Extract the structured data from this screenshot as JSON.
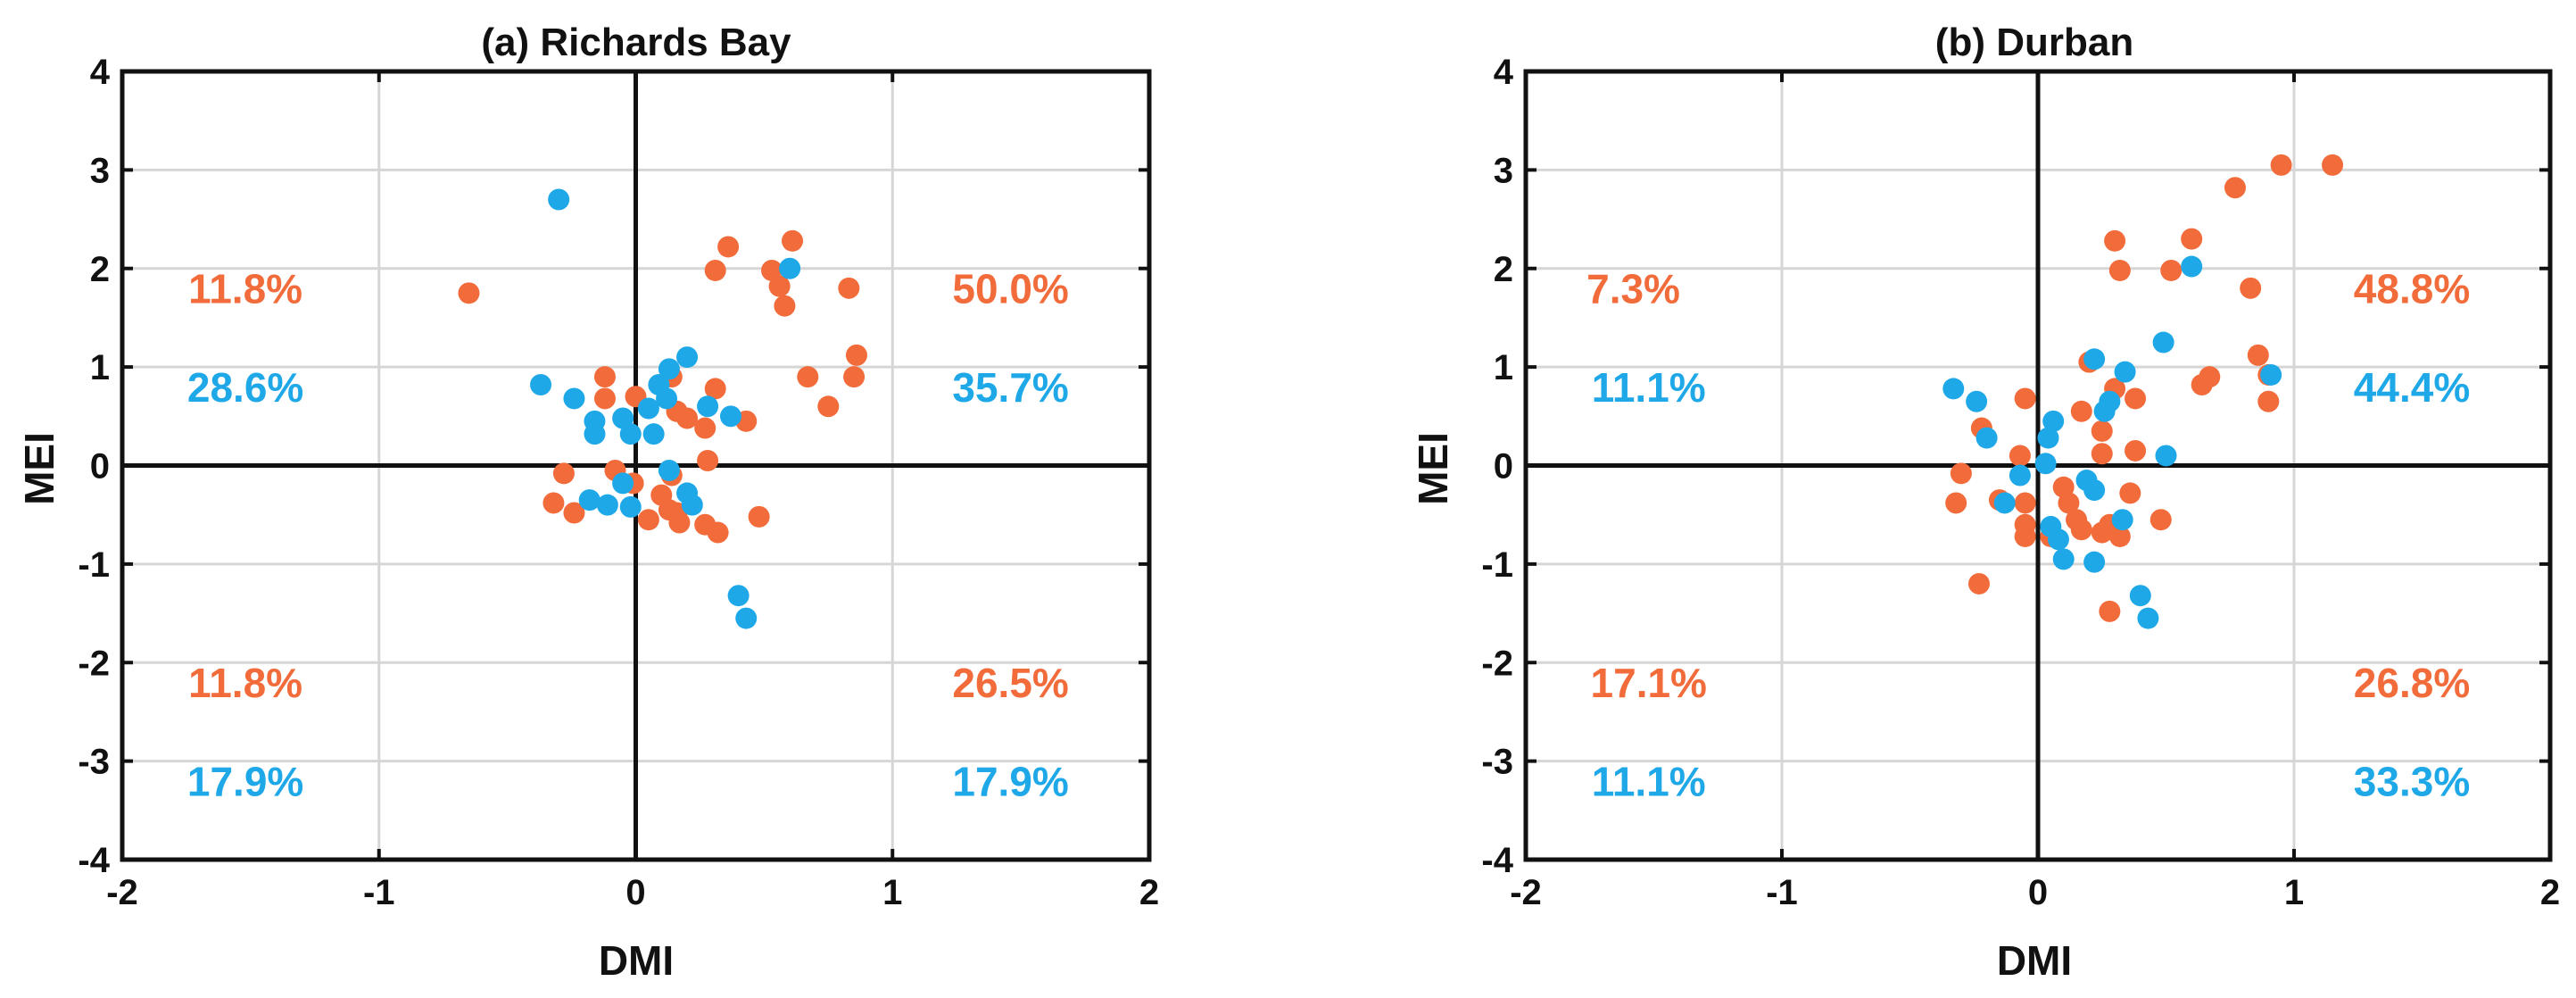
{
  "colors": {
    "orange": "#F26B3A",
    "blue": "#1FA8E8",
    "axis": "#111111",
    "grid": "#D6D6D6"
  },
  "chart_data": [
    {
      "type": "scatter",
      "title": "(a) Richards Bay",
      "xlabel": "DMI",
      "ylabel": "MEI",
      "xlim": [
        -2,
        2
      ],
      "ylim": [
        -4,
        4
      ],
      "xticks": [
        "-2",
        "-1",
        "0",
        "1",
        "2"
      ],
      "yticks": [
        "4",
        "3",
        "2",
        "1",
        "0",
        "-1",
        "-2",
        "-3",
        "-4"
      ],
      "grid": true,
      "series": [
        {
          "name": "orange",
          "color": "#F26B3A",
          "points": [
            [
              -0.65,
              1.75
            ],
            [
              0.36,
              2.22
            ],
            [
              0.61,
              2.28
            ],
            [
              0.31,
              1.98
            ],
            [
              0.53,
              1.98
            ],
            [
              0.56,
              1.82
            ],
            [
              0.58,
              1.62
            ],
            [
              0.83,
              1.8
            ],
            [
              0.86,
              1.12
            ],
            [
              0.85,
              0.9
            ],
            [
              0.67,
              0.9
            ],
            [
              0.75,
              0.6
            ],
            [
              0.31,
              0.78
            ],
            [
              0.43,
              0.45
            ],
            [
              0.27,
              0.38
            ],
            [
              0.2,
              0.48
            ],
            [
              -0.12,
              0.9
            ],
            [
              -0.12,
              0.68
            ],
            [
              0.0,
              0.7
            ],
            [
              0.14,
              0.9
            ],
            [
              0.16,
              0.55
            ],
            [
              -0.32,
              -0.38
            ],
            [
              -0.28,
              -0.08
            ],
            [
              -0.24,
              -0.48
            ],
            [
              -0.08,
              -0.05
            ],
            [
              -0.01,
              -0.18
            ],
            [
              0.05,
              -0.55
            ],
            [
              0.1,
              -0.3
            ],
            [
              0.13,
              -0.45
            ],
            [
              0.14,
              -0.1
            ],
            [
              0.16,
              -0.48
            ],
            [
              0.17,
              -0.58
            ],
            [
              0.27,
              -0.6
            ],
            [
              0.28,
              0.05
            ],
            [
              0.32,
              -0.68
            ],
            [
              0.48,
              -0.52
            ]
          ]
        },
        {
          "name": "blue",
          "color": "#1FA8E8",
          "points": [
            [
              -0.3,
              2.7
            ],
            [
              0.6,
              2.0
            ],
            [
              0.2,
              1.1
            ],
            [
              0.13,
              0.98
            ],
            [
              0.09,
              0.82
            ],
            [
              0.12,
              0.68
            ],
            [
              0.05,
              0.58
            ],
            [
              -0.37,
              0.82
            ],
            [
              -0.24,
              0.68
            ],
            [
              -0.16,
              0.45
            ],
            [
              -0.16,
              0.32
            ],
            [
              -0.05,
              0.48
            ],
            [
              -0.02,
              0.32
            ],
            [
              0.07,
              0.32
            ],
            [
              0.28,
              0.6
            ],
            [
              0.37,
              0.5
            ],
            [
              -0.18,
              -0.35
            ],
            [
              -0.11,
              -0.4
            ],
            [
              -0.05,
              -0.18
            ],
            [
              -0.02,
              -0.42
            ],
            [
              0.13,
              -0.05
            ],
            [
              0.2,
              -0.28
            ],
            [
              0.22,
              -0.4
            ],
            [
              0.4,
              -1.32
            ],
            [
              0.43,
              -1.55
            ]
          ]
        }
      ],
      "annotations": [
        {
          "text": "11.8%",
          "color": "orange",
          "x": -1.52,
          "y": 1.65
        },
        {
          "text": "28.6%",
          "color": "blue",
          "x": -1.52,
          "y": 0.65
        },
        {
          "text": "50.0%",
          "color": "orange",
          "x": 1.46,
          "y": 1.65
        },
        {
          "text": "35.7%",
          "color": "blue",
          "x": 1.46,
          "y": 0.65
        },
        {
          "text": "11.8%",
          "color": "orange",
          "x": -1.52,
          "y": -2.35
        },
        {
          "text": "17.9%",
          "color": "blue",
          "x": -1.52,
          "y": -3.35
        },
        {
          "text": "26.5%",
          "color": "orange",
          "x": 1.46,
          "y": -2.35
        },
        {
          "text": "17.9%",
          "color": "blue",
          "x": 1.46,
          "y": -3.35
        }
      ]
    },
    {
      "type": "scatter",
      "title": "(b) Durban",
      "xlabel": "DMI",
      "ylabel": "MEI",
      "xlim": [
        -2,
        2
      ],
      "ylim": [
        -4,
        4
      ],
      "xticks": [
        "-2",
        "-1",
        "0",
        "1",
        "2"
      ],
      "yticks": [
        "4",
        "3",
        "2",
        "1",
        "0",
        "-1",
        "-2",
        "-3",
        "-4"
      ],
      "grid": true,
      "series": [
        {
          "name": "orange",
          "color": "#F26B3A",
          "points": [
            [
              0.95,
              3.05
            ],
            [
              1.15,
              3.05
            ],
            [
              0.77,
              2.82
            ],
            [
              0.6,
              2.3
            ],
            [
              0.3,
              2.28
            ],
            [
              0.32,
              1.98
            ],
            [
              0.52,
              1.98
            ],
            [
              0.83,
              1.8
            ],
            [
              0.86,
              1.12
            ],
            [
              0.9,
              0.92
            ],
            [
              0.9,
              0.65
            ],
            [
              0.67,
              0.9
            ],
            [
              0.64,
              0.82
            ],
            [
              0.2,
              1.05
            ],
            [
              0.38,
              0.68
            ],
            [
              0.3,
              0.78
            ],
            [
              0.38,
              0.15
            ],
            [
              0.25,
              0.35
            ],
            [
              0.25,
              0.12
            ],
            [
              0.17,
              0.55
            ],
            [
              -0.05,
              0.68
            ],
            [
              -0.07,
              0.1
            ],
            [
              -0.22,
              0.38
            ],
            [
              -0.32,
              -0.38
            ],
            [
              -0.3,
              -0.08
            ],
            [
              -0.15,
              -0.35
            ],
            [
              -0.05,
              -0.38
            ],
            [
              -0.05,
              -0.6
            ],
            [
              -0.05,
              -0.72
            ],
            [
              0.05,
              -0.72
            ],
            [
              0.1,
              -0.22
            ],
            [
              0.12,
              -0.38
            ],
            [
              0.15,
              -0.55
            ],
            [
              0.17,
              -0.65
            ],
            [
              0.25,
              -0.68
            ],
            [
              0.28,
              -0.6
            ],
            [
              0.36,
              -0.28
            ],
            [
              0.48,
              -0.55
            ],
            [
              0.32,
              -0.72
            ],
            [
              -0.23,
              -1.2
            ],
            [
              0.28,
              -1.48
            ]
          ]
        },
        {
          "name": "blue",
          "color": "#1FA8E8",
          "points": [
            [
              0.6,
              2.02
            ],
            [
              0.49,
              1.25
            ],
            [
              0.91,
              0.92
            ],
            [
              0.34,
              0.95
            ],
            [
              0.22,
              1.08
            ],
            [
              0.28,
              0.65
            ],
            [
              0.26,
              0.55
            ],
            [
              0.06,
              0.45
            ],
            [
              0.04,
              0.28
            ],
            [
              -0.2,
              0.28
            ],
            [
              -0.33,
              0.78
            ],
            [
              -0.24,
              0.65
            ],
            [
              0.03,
              0.02
            ],
            [
              -0.07,
              -0.1
            ],
            [
              -0.13,
              -0.38
            ],
            [
              0.05,
              -0.62
            ],
            [
              0.08,
              -0.75
            ],
            [
              0.1,
              -0.95
            ],
            [
              0.19,
              -0.15
            ],
            [
              0.22,
              -0.25
            ],
            [
              0.33,
              -0.55
            ],
            [
              0.22,
              -0.98
            ],
            [
              0.4,
              -1.32
            ],
            [
              0.43,
              -1.55
            ],
            [
              0.5,
              0.1
            ]
          ]
        }
      ],
      "annotations": [
        {
          "text": "7.3%",
          "color": "orange",
          "x": -1.58,
          "y": 1.65
        },
        {
          "text": "11.1%",
          "color": "blue",
          "x": -1.52,
          "y": 0.65
        },
        {
          "text": "48.8%",
          "color": "orange",
          "x": 1.46,
          "y": 1.65
        },
        {
          "text": "44.4%",
          "color": "blue",
          "x": 1.46,
          "y": 0.65
        },
        {
          "text": "17.1%",
          "color": "orange",
          "x": -1.52,
          "y": -2.35
        },
        {
          "text": "11.1%",
          "color": "blue",
          "x": -1.52,
          "y": -3.35
        },
        {
          "text": "26.8%",
          "color": "orange",
          "x": 1.46,
          "y": -2.35
        },
        {
          "text": "33.3%",
          "color": "blue",
          "x": 1.46,
          "y": -3.35
        }
      ]
    }
  ]
}
